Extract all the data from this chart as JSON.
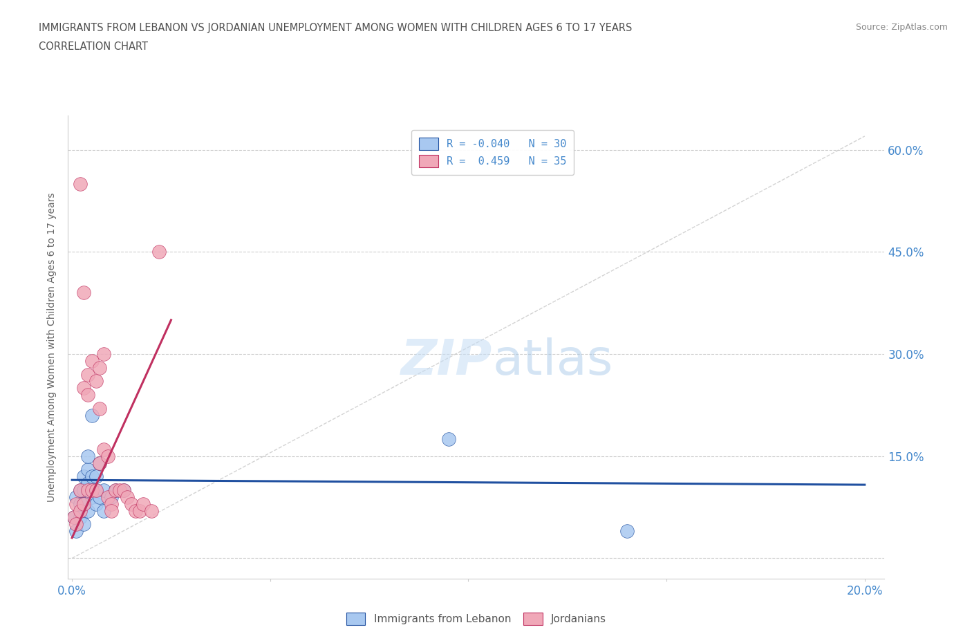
{
  "title_line1": "IMMIGRANTS FROM LEBANON VS JORDANIAN UNEMPLOYMENT AMONG WOMEN WITH CHILDREN AGES 6 TO 17 YEARS",
  "title_line2": "CORRELATION CHART",
  "source": "Source: ZipAtlas.com",
  "ylabel": "Unemployment Among Women with Children Ages 6 to 17 years",
  "xlim": [
    -0.001,
    0.205
  ],
  "ylim": [
    -0.03,
    0.65
  ],
  "yticks": [
    0.0,
    0.15,
    0.3,
    0.45,
    0.6
  ],
  "ytick_labels": [
    "",
    "15.0%",
    "30.0%",
    "45.0%",
    "60.0%"
  ],
  "xticks": [
    0.0,
    0.05,
    0.1,
    0.15,
    0.2
  ],
  "xtick_labels": [
    "0.0%",
    "",
    "",
    "",
    "20.0%"
  ],
  "color_lebanon": "#a8c8f0",
  "color_lebanon_line": "#2050a0",
  "color_jordan": "#f0a8b8",
  "color_jordan_line": "#c03060",
  "color_diagonal": "#c8c8c8",
  "watermark_zip": "ZIP",
  "watermark_atlas": "atlas",
  "title_color": "#505050",
  "axis_color": "#4488cc",
  "legend_text_color": "#4488cc",
  "source_color": "#888888",
  "lebanon_x": [
    0.0005,
    0.001,
    0.001,
    0.002,
    0.002,
    0.002,
    0.003,
    0.003,
    0.003,
    0.003,
    0.004,
    0.004,
    0.004,
    0.004,
    0.004,
    0.005,
    0.005,
    0.005,
    0.006,
    0.006,
    0.006,
    0.007,
    0.007,
    0.008,
    0.008,
    0.01,
    0.011,
    0.013,
    0.095,
    0.14
  ],
  "lebanon_y": [
    0.06,
    0.09,
    0.04,
    0.06,
    0.08,
    0.1,
    0.08,
    0.1,
    0.12,
    0.05,
    0.1,
    0.11,
    0.13,
    0.15,
    0.07,
    0.21,
    0.09,
    0.12,
    0.1,
    0.08,
    0.12,
    0.14,
    0.09,
    0.1,
    0.07,
    0.09,
    0.1,
    0.1,
    0.175,
    0.04
  ],
  "jordan_x": [
    0.0005,
    0.001,
    0.001,
    0.002,
    0.002,
    0.002,
    0.003,
    0.003,
    0.003,
    0.004,
    0.004,
    0.004,
    0.005,
    0.005,
    0.006,
    0.006,
    0.007,
    0.007,
    0.007,
    0.008,
    0.008,
    0.009,
    0.009,
    0.01,
    0.01,
    0.011,
    0.012,
    0.013,
    0.014,
    0.015,
    0.016,
    0.017,
    0.018,
    0.02,
    0.022
  ],
  "jordan_y": [
    0.06,
    0.08,
    0.05,
    0.55,
    0.1,
    0.07,
    0.39,
    0.25,
    0.08,
    0.27,
    0.24,
    0.1,
    0.29,
    0.1,
    0.26,
    0.1,
    0.28,
    0.22,
    0.14,
    0.3,
    0.16,
    0.15,
    0.09,
    0.08,
    0.07,
    0.1,
    0.1,
    0.1,
    0.09,
    0.08,
    0.07,
    0.07,
    0.08,
    0.07,
    0.45
  ],
  "jor_line_x0": 0.0,
  "jor_line_x1": 0.025,
  "jor_line_y0": 0.03,
  "jor_line_y1": 0.35,
  "leb_line_x0": 0.0,
  "leb_line_x1": 0.2,
  "leb_line_y0": 0.115,
  "leb_line_y1": 0.108
}
